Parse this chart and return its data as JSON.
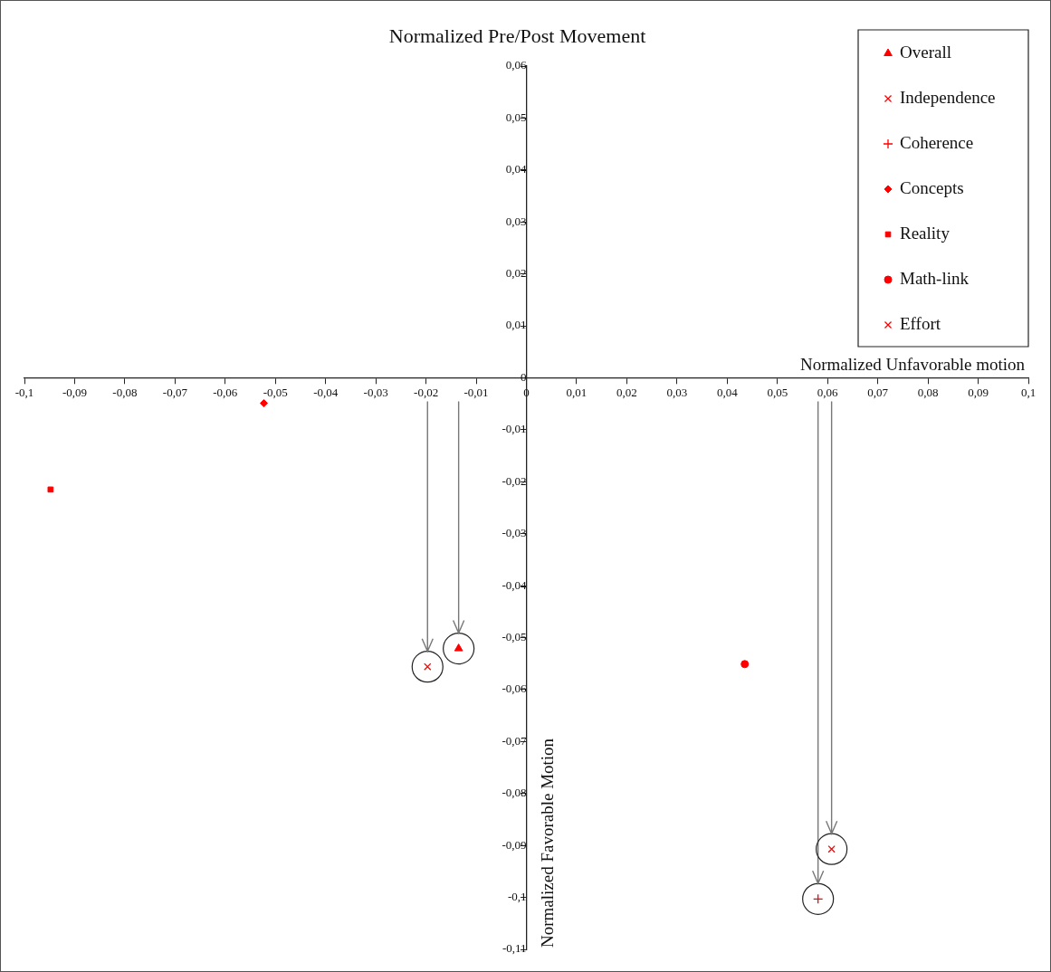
{
  "chart_data": {
    "type": "scatter",
    "title": "Normalized Pre/Post Movement",
    "xlabel": "Normalized Unfavorable motion",
    "ylabel": "Normalized Favorable Motion",
    "xlim": [
      -0.1,
      0.1
    ],
    "ylim": [
      -0.11,
      0.06
    ],
    "xticks": [
      {
        "value": -0.1,
        "label": "-0,1"
      },
      {
        "value": -0.09,
        "label": "-0,09"
      },
      {
        "value": -0.08,
        "label": "-0,08"
      },
      {
        "value": -0.07,
        "label": "-0,07"
      },
      {
        "value": -0.06,
        "label": "-0,06"
      },
      {
        "value": -0.05,
        "label": "-0,05"
      },
      {
        "value": -0.04,
        "label": "-0,04"
      },
      {
        "value": -0.03,
        "label": "-0,03"
      },
      {
        "value": -0.02,
        "label": "-0,02"
      },
      {
        "value": -0.01,
        "label": "-0,01"
      },
      0,
      {
        "value": 0.01,
        "label": "0,01"
      },
      {
        "value": 0.02,
        "label": "0,02"
      },
      {
        "value": 0.03,
        "label": "0,03"
      },
      {
        "value": 0.04,
        "label": "0,04"
      },
      {
        "value": 0.05,
        "label": "0,05"
      },
      {
        "value": 0.06,
        "label": "0,06"
      },
      {
        "value": 0.07,
        "label": "0,07"
      },
      {
        "value": 0.08,
        "label": "0,08"
      },
      {
        "value": 0.09,
        "label": "0,09"
      },
      {
        "value": 0.1,
        "label": "0,1"
      }
    ],
    "yticks": [
      {
        "value": 0.06,
        "label": "0,06"
      },
      {
        "value": 0.05,
        "label": "0,05"
      },
      {
        "value": 0.04,
        "label": "0,04"
      },
      {
        "value": 0.03,
        "label": "0,03"
      },
      {
        "value": 0.02,
        "label": "0,02"
      },
      {
        "value": 0.01,
        "label": "0,01"
      },
      0,
      {
        "value": -0.01,
        "label": "-0,01"
      },
      {
        "value": -0.02,
        "label": "-0,02"
      },
      {
        "value": -0.03,
        "label": "-0,03"
      },
      {
        "value": -0.04,
        "label": "-0,04"
      },
      {
        "value": -0.05,
        "label": "-0,05"
      },
      {
        "value": -0.06,
        "label": "-0,06"
      },
      {
        "value": -0.07,
        "label": "-0,07"
      },
      {
        "value": -0.08,
        "label": "-0,08"
      },
      {
        "value": -0.09,
        "label": "-0,09"
      },
      {
        "value": -0.1,
        "label": "-0,1"
      },
      {
        "value": -0.11,
        "label": "-0,11"
      }
    ],
    "grid": false,
    "legend": "top right",
    "series": [
      {
        "name": "Overall",
        "color": "#ff0000",
        "marker": "triangle",
        "x": [
          -0.0135
        ],
        "values": [
          -0.0521
        ]
      },
      {
        "name": "Independence",
        "color": "#ff0000",
        "marker": "cross",
        "x": [
          -0.0197
        ],
        "values": [
          -0.0556
        ]
      },
      {
        "name": "Coherence",
        "color": "#ff0000",
        "marker": "plus",
        "x": [
          0.0581
        ],
        "values": [
          -0.1003
        ]
      },
      {
        "name": "Concepts",
        "color": "#ff0000",
        "marker": "diamond",
        "x": [
          -0.0523
        ],
        "values": [
          -0.0049
        ]
      },
      {
        "name": "Reality",
        "color": "#ff0000",
        "marker": "square",
        "x": [
          -0.0948
        ],
        "values": [
          -0.0215
        ]
      },
      {
        "name": "Math-link",
        "color": "#ff0000",
        "marker": "circle",
        "x": [
          0.0435
        ],
        "values": [
          -0.0551
        ]
      },
      {
        "name": "Effort",
        "color": "#ff0000",
        "marker": "cross",
        "x": [
          0.0608
        ],
        "values": [
          -0.0907
        ]
      }
    ]
  }
}
